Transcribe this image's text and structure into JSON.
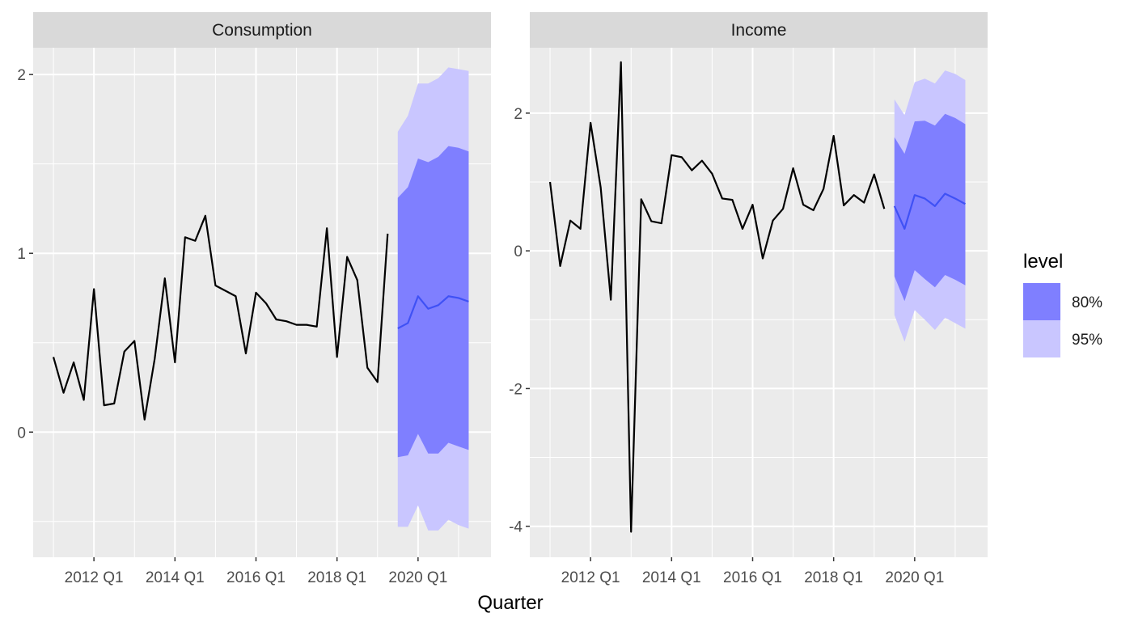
{
  "chart_data": {
    "type": "line",
    "xlabel": "Quarter",
    "x_tick_labels": [
      "2012 Q1",
      "2014 Q1",
      "2016 Q1",
      "2018 Q1",
      "2020 Q1"
    ],
    "x_tick_values": [
      2012,
      2014,
      2016,
      2018,
      2020
    ],
    "xlim": [
      2010.5,
      2021.8
    ],
    "grid": true,
    "legend": {
      "title": "level",
      "placement": "right",
      "entries": [
        {
          "label": "80%",
          "color": "#7F7FFF"
        },
        {
          "label": "95%",
          "color": "#C9C6FF"
        }
      ]
    },
    "colors": {
      "panel_bg": "#EBEBEB",
      "strip_bg": "#D9D9D9",
      "grid": "#FFFFFF",
      "history_line": "#000000",
      "forecast_line": "#3F51F5",
      "band80": "#7F7FFF",
      "band95": "#C9C6FF"
    },
    "panels": [
      {
        "title": "Consumption",
        "ylim": [
          -0.7,
          2.15
        ],
        "y_ticks": [
          0,
          1,
          2
        ],
        "y_tick_labels": [
          "0",
          "1",
          "2"
        ],
        "history": {
          "x": [
            2011.0,
            2011.25,
            2011.5,
            2011.75,
            2012.0,
            2012.25,
            2012.5,
            2012.75,
            2013.0,
            2013.25,
            2013.5,
            2013.75,
            2014.0,
            2014.25,
            2014.5,
            2014.75,
            2015.0,
            2015.25,
            2015.5,
            2015.75,
            2016.0,
            2016.25,
            2016.5,
            2016.75,
            2017.0,
            2017.25,
            2017.5,
            2017.75,
            2018.0,
            2018.25,
            2018.5,
            2018.75,
            2019.0,
            2019.25
          ],
          "y": [
            0.42,
            0.22,
            0.39,
            0.18,
            0.8,
            0.15,
            0.16,
            0.45,
            0.51,
            0.07,
            0.41,
            0.86,
            0.39,
            1.09,
            1.07,
            1.21,
            0.82,
            0.79,
            0.76,
            0.44,
            0.78,
            0.72,
            0.63,
            0.62,
            0.6,
            0.6,
            0.59,
            1.14,
            0.42,
            0.98,
            0.85,
            0.36,
            0.28,
            1.11
          ]
        },
        "forecast": {
          "x": [
            2019.5,
            2019.75,
            2020.0,
            2020.25,
            2020.5,
            2020.75,
            2021.0,
            2021.25
          ],
          "mean": [
            0.58,
            0.61,
            0.76,
            0.69,
            0.71,
            0.76,
            0.75,
            0.73
          ],
          "lo80": [
            -0.14,
            -0.13,
            -0.01,
            -0.12,
            -0.12,
            -0.06,
            -0.08,
            -0.1
          ],
          "hi80": [
            1.31,
            1.37,
            1.53,
            1.51,
            1.54,
            1.6,
            1.59,
            1.57
          ],
          "lo95": [
            -0.53,
            -0.53,
            -0.41,
            -0.55,
            -0.55,
            -0.49,
            -0.52,
            -0.54
          ],
          "hi95": [
            1.68,
            1.77,
            1.95,
            1.95,
            1.98,
            2.04,
            2.03,
            2.02
          ]
        }
      },
      {
        "title": "Income",
        "ylim": [
          -4.45,
          2.95
        ],
        "y_ticks": [
          -4,
          -2,
          0,
          2
        ],
        "y_tick_labels": [
          "-4",
          "-2",
          "0",
          "2"
        ],
        "history": {
          "x": [
            2011.0,
            2011.25,
            2011.5,
            2011.75,
            2012.0,
            2012.25,
            2012.5,
            2012.75,
            2013.0,
            2013.25,
            2013.5,
            2013.75,
            2014.0,
            2014.25,
            2014.5,
            2014.75,
            2015.0,
            2015.25,
            2015.5,
            2015.75,
            2016.0,
            2016.25,
            2016.5,
            2016.75,
            2017.0,
            2017.25,
            2017.5,
            2017.75,
            2018.0,
            2018.25,
            2018.5,
            2018.75,
            2019.0,
            2019.25
          ],
          "y": [
            1.0,
            -0.22,
            0.44,
            0.32,
            1.86,
            0.92,
            -0.71,
            2.74,
            -4.08,
            0.75,
            0.43,
            0.4,
            1.39,
            1.36,
            1.17,
            1.31,
            1.12,
            0.76,
            0.74,
            0.32,
            0.67,
            -0.11,
            0.44,
            0.61,
            1.2,
            0.67,
            0.59,
            0.9,
            1.67,
            0.66,
            0.81,
            0.7,
            1.11,
            0.61
          ]
        },
        "forecast": {
          "x": [
            2019.5,
            2019.75,
            2020.0,
            2020.25,
            2020.5,
            2020.75,
            2021.0,
            2021.25
          ],
          "mean": [
            0.65,
            0.32,
            0.81,
            0.76,
            0.65,
            0.83,
            0.76,
            0.68
          ],
          "lo80": [
            -0.37,
            -0.73,
            -0.28,
            -0.41,
            -0.53,
            -0.35,
            -0.42,
            -0.5
          ],
          "hi80": [
            1.65,
            1.41,
            1.88,
            1.89,
            1.82,
            1.99,
            1.93,
            1.84
          ],
          "lo95": [
            -0.93,
            -1.32,
            -0.86,
            -1.0,
            -1.15,
            -0.97,
            -1.05,
            -1.13
          ],
          "hi95": [
            2.2,
            1.97,
            2.45,
            2.5,
            2.43,
            2.62,
            2.57,
            2.48
          ]
        }
      }
    ]
  }
}
